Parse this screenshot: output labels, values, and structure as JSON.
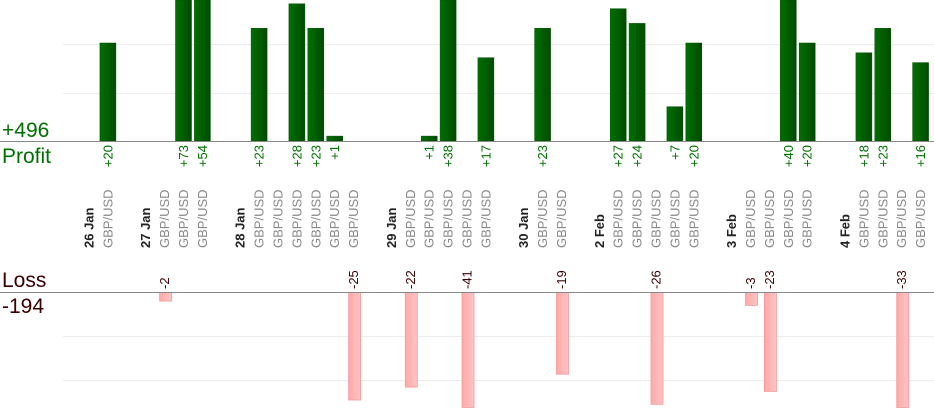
{
  "chart_data": {
    "type": "bar",
    "title": "",
    "profit_total_label": "+496",
    "profit_label": "Profit",
    "loss_label": "Loss",
    "loss_total_label": "-194",
    "instrument": "GBP/USD",
    "profit_ylim": [
      0,
      28
    ],
    "loss_ylim": [
      0,
      27
    ],
    "grid": true,
    "colors": {
      "profit": "#006400",
      "profit_dark": "#004400",
      "loss": "#ffb3b3",
      "loss_border": "#f59a9a",
      "profit_text": "#007000",
      "loss_text": "#3a0000",
      "instrument_text": "#888888"
    },
    "days": [
      {
        "date": "26 Jan",
        "trades": [
          20
        ]
      },
      {
        "date": "27 Jan",
        "trades": [
          -2,
          73,
          54
        ]
      },
      {
        "date": "28 Jan",
        "trades": [
          23,
          0,
          28,
          23,
          1,
          -25
        ]
      },
      {
        "date": "29 Jan",
        "trades": [
          -22,
          1,
          38,
          -41,
          17
        ]
      },
      {
        "date": "30 Jan",
        "trades": [
          23,
          -19
        ]
      },
      {
        "date": "2 Feb",
        "trades": [
          27,
          24,
          -26,
          7,
          20
        ]
      },
      {
        "date": "3 Feb",
        "trades": [
          -3,
          -23,
          40,
          20
        ]
      },
      {
        "date": "4 Feb",
        "trades": [
          18,
          23,
          -33,
          16
        ]
      }
    ]
  }
}
